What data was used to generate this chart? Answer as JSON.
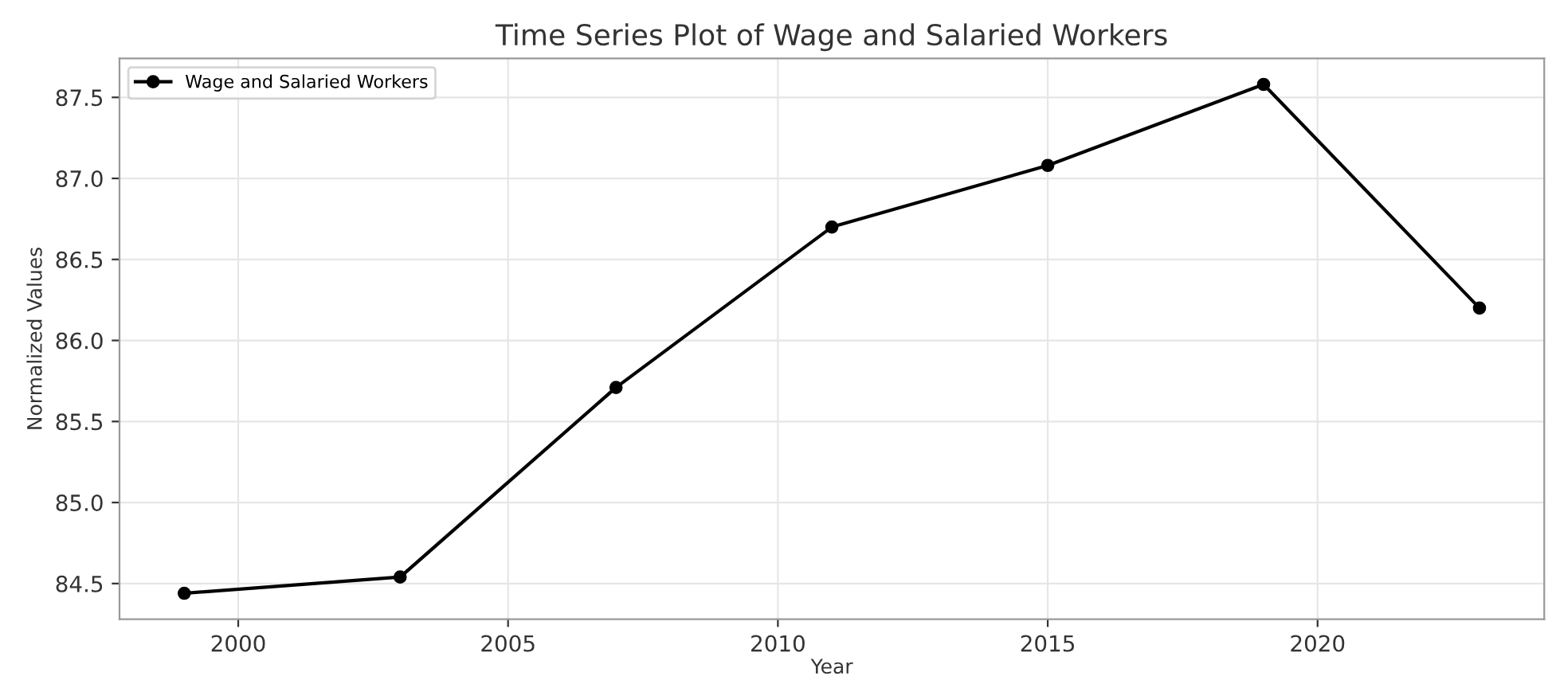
{
  "chart_data": {
    "type": "line",
    "title": "Time Series Plot of Wage and Salaried Workers",
    "xlabel": "Year",
    "ylabel": "Normalized Values",
    "x": [
      1999,
      2003,
      2007,
      2011,
      2015,
      2019,
      2023
    ],
    "series": [
      {
        "name": "Wage and Salaried Workers",
        "color": "#000000",
        "values": [
          84.44,
          84.54,
          85.71,
          86.7,
          87.08,
          87.58,
          86.2
        ]
      }
    ],
    "xlim": [
      1997.8,
      2024.2
    ],
    "ylim": [
      84.28,
      87.74
    ],
    "xticks": [
      2000,
      2005,
      2010,
      2015,
      2020
    ],
    "yticks": [
      {
        "value": 84.5,
        "label": "84.5"
      },
      {
        "value": 85,
        "label": "85.0"
      },
      {
        "value": 85.5,
        "label": "85.5"
      },
      {
        "value": 86,
        "label": "86.0"
      },
      {
        "value": 86.5,
        "label": "86.5"
      },
      {
        "value": 87,
        "label": "87.0"
      },
      {
        "value": 87.5,
        "label": "87.5"
      }
    ],
    "grid": true,
    "legend": "top left",
    "marker": "circle",
    "line_style": "solid"
  }
}
